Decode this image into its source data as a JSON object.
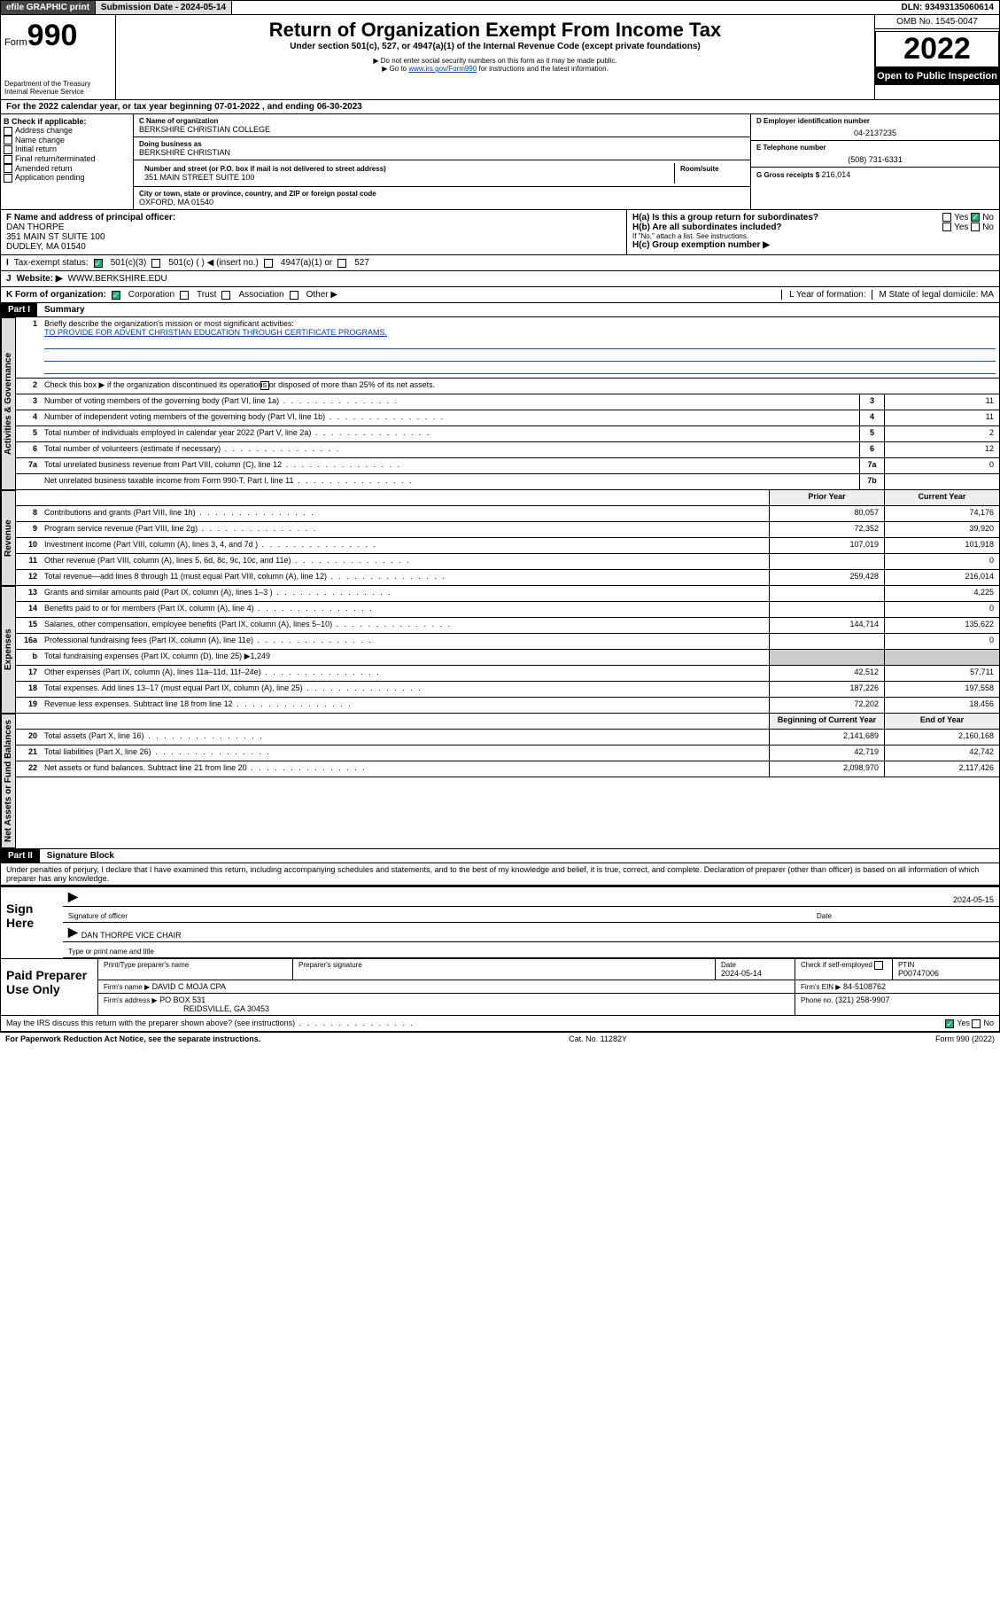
{
  "topbar": {
    "efile": "efile GRAPHIC print",
    "submission_label": "Submission Date - 2024-05-14",
    "dln": "DLN: 93493135060614"
  },
  "header": {
    "form_prefix": "Form",
    "form_no": "990",
    "dept": "Department of the Treasury",
    "irs": "Internal Revenue Service",
    "title": "Return of Organization Exempt From Income Tax",
    "sub1": "Under section 501(c), 527, or 4947(a)(1) of the Internal Revenue Code (except private foundations)",
    "sub2": "▶ Do not enter social security numbers on this form as it may be made public.",
    "sub3_pre": "▶ Go to ",
    "sub3_link": "www.irs.gov/Form990",
    "sub3_post": " for instructions and the latest information.",
    "omb": "OMB No. 1545-0047",
    "year": "2022",
    "inspect": "Open to Public Inspection"
  },
  "a": "For the 2022 calendar year, or tax year beginning 07-01-2022   , and ending 06-30-2023",
  "b": {
    "label": "B Check if applicable:",
    "opts": [
      "Address change",
      "Name change",
      "Initial return",
      "Final return/terminated",
      "Amended return",
      "Application pending"
    ]
  },
  "c": {
    "name_lbl": "C Name of organization",
    "name": "BERKSHIRE CHRISTIAN COLLEGE",
    "dba_lbl": "Doing business as",
    "dba": "BERKSHIRE CHRISTIAN",
    "street_lbl": "Number and street (or P.O. box if mail is not delivered to street address)",
    "suite_lbl": "Room/suite",
    "street": "351 MAIN STREET SUITE 100",
    "city_lbl": "City or town, state or province, country, and ZIP or foreign postal code",
    "city": "OXFORD, MA  01540"
  },
  "d": {
    "lbl": "D Employer identification number",
    "val": "04-2137235"
  },
  "e": {
    "lbl": "E Telephone number",
    "val": "(508) 731-6331"
  },
  "g": {
    "lbl": "G Gross receipts $",
    "val": "216,014"
  },
  "f": {
    "lbl": "F Name and address of principal officer:",
    "name": "DAN THORPE",
    "addr1": "351 MAIN ST SUITE 100",
    "addr2": "DUDLEY, MA  01540"
  },
  "h": {
    "a": "H(a)  Is this a group return for subordinates?",
    "b": "H(b)  Are all subordinates included?",
    "note": "If \"No,\" attach a list. See instructions.",
    "c": "H(c)  Group exemption number ▶",
    "yes": "Yes",
    "no": "No"
  },
  "i": {
    "lbl": "Tax-exempt status:",
    "o1": "501(c)(3)",
    "o2": "501(c) (  ) ◀ (insert no.)",
    "o3": "4947(a)(1) or",
    "o4": "527"
  },
  "j": {
    "lbl": "Website: ▶",
    "val": "WWW.BERKSHIRE.EDU"
  },
  "k": {
    "lbl": "K Form of organization:",
    "o1": "Corporation",
    "o2": "Trust",
    "o3": "Association",
    "o4": "Other ▶"
  },
  "l": "L Year of formation:",
  "m": "M State of legal domicile: MA",
  "part1": {
    "hdr": "Part I",
    "title": "Summary",
    "l1a": "Briefly describe the organization's mission or most significant activities:",
    "l1b": "TO PROVIDE FOR ADVENT CHRISTIAN EDUCATION THROUGH CERTIFICATE PROGRAMS.",
    "l2": "Check this box ▶        if the organization discontinued its operations or disposed of more than 25% of its net assets.",
    "rows_gov": [
      {
        "n": "3",
        "t": "Number of voting members of the governing body (Part VI, line 1a)",
        "b": "3",
        "v": "11"
      },
      {
        "n": "4",
        "t": "Number of independent voting members of the governing body (Part VI, line 1b)",
        "b": "4",
        "v": "11"
      },
      {
        "n": "5",
        "t": "Total number of individuals employed in calendar year 2022 (Part V, line 2a)",
        "b": "5",
        "v": "2"
      },
      {
        "n": "6",
        "t": "Total number of volunteers (estimate if necessary)",
        "b": "6",
        "v": "12"
      },
      {
        "n": "7a",
        "t": "Total unrelated business revenue from Part VIII, column (C), line 12",
        "b": "7a",
        "v": "0"
      },
      {
        "n": "",
        "t": "Net unrelated business taxable income from Form 990-T, Part I, line 11",
        "b": "7b",
        "v": ""
      }
    ],
    "hprior": "Prior Year",
    "hcurr": "Current Year",
    "rows_rev": [
      {
        "n": "8",
        "t": "Contributions and grants (Part VIII, line 1h)",
        "p": "80,057",
        "c": "74,176"
      },
      {
        "n": "9",
        "t": "Program service revenue (Part VIII, line 2g)",
        "p": "72,352",
        "c": "39,920"
      },
      {
        "n": "10",
        "t": "Investment income (Part VIII, column (A), lines 3, 4, and 7d )",
        "p": "107,019",
        "c": "101,918"
      },
      {
        "n": "11",
        "t": "Other revenue (Part VIII, column (A), lines 5, 6d, 8c, 9c, 10c, and 11e)",
        "p": "",
        "c": "0"
      },
      {
        "n": "12",
        "t": "Total revenue—add lines 8 through 11 (must equal Part VIII, column (A), line 12)",
        "p": "259,428",
        "c": "216,014"
      }
    ],
    "rows_exp": [
      {
        "n": "13",
        "t": "Grants and similar amounts paid (Part IX, column (A), lines 1–3 )",
        "p": "",
        "c": "4,225"
      },
      {
        "n": "14",
        "t": "Benefits paid to or for members (Part IX, column (A), line 4)",
        "p": "",
        "c": "0"
      },
      {
        "n": "15",
        "t": "Salaries, other compensation, employee benefits (Part IX, column (A), lines 5–10)",
        "p": "144,714",
        "c": "135,622"
      },
      {
        "n": "16a",
        "t": "Professional fundraising fees (Part IX, column (A), line 11e)",
        "p": "",
        "c": "0"
      },
      {
        "n": "b",
        "t": "Total fundraising expenses (Part IX, column (D), line 25) ▶1,249",
        "p": "__NOSPLIT__",
        "c": "__NOSPLIT__"
      },
      {
        "n": "17",
        "t": "Other expenses (Part IX, column (A), lines 11a–11d, 11f–24e)",
        "p": "42,512",
        "c": "57,711"
      },
      {
        "n": "18",
        "t": "Total expenses. Add lines 13–17 (must equal Part IX, column (A), line 25)",
        "p": "187,226",
        "c": "197,558"
      },
      {
        "n": "19",
        "t": "Revenue less expenses. Subtract line 18 from line 12",
        "p": "72,202",
        "c": "18,456"
      }
    ],
    "hbeg": "Beginning of Current Year",
    "hend": "End of Year",
    "rows_net": [
      {
        "n": "20",
        "t": "Total assets (Part X, line 16)",
        "p": "2,141,689",
        "c": "2,160,168"
      },
      {
        "n": "21",
        "t": "Total liabilities (Part X, line 26)",
        "p": "42,719",
        "c": "42,742"
      },
      {
        "n": "22",
        "t": "Net assets or fund balances. Subtract line 21 from line 20",
        "p": "2,098,970",
        "c": "2,117,426"
      }
    ],
    "tab_gov": "Activities & Governance",
    "tab_rev": "Revenue",
    "tab_exp": "Expenses",
    "tab_net": "Net Assets or Fund Balances"
  },
  "part2": {
    "hdr": "Part II",
    "title": "Signature Block",
    "decl": "Under penalties of perjury, I declare that I have examined this return, including accompanying schedules and statements, and to the best of my knowledge and belief, it is true, correct, and complete. Declaration of preparer (other than officer) is based on all information of which preparer has any knowledge.",
    "sign_here": "Sign Here",
    "sig_officer": "Signature of officer",
    "sig_date_lbl": "Date",
    "sig_date": "2024-05-15",
    "name_title": "DAN THORPE  VICE CHAIR",
    "name_title_lbl": "Type or print name and title",
    "paid": "Paid Preparer Use Only",
    "pp_name_lbl": "Print/Type preparer's name",
    "pp_sig_lbl": "Preparer's signature",
    "pp_date_lbl": "Date",
    "pp_date": "2024-05-14",
    "pp_check": "Check        if self-employed",
    "ptin_lbl": "PTIN",
    "ptin": "P00747006",
    "firm_name_lbl": "Firm's name   ▶",
    "firm_name": "DAVID C MOJA CPA",
    "firm_ein_lbl": "Firm's EIN ▶",
    "firm_ein": "84-5108762",
    "firm_addr_lbl": "Firm's address ▶",
    "firm_addr1": "PO BOX 531",
    "firm_addr2": "REIDSVILLE, GA  30453",
    "phone_lbl": "Phone no.",
    "phone": "(321) 258-9907",
    "discuss": "May the IRS discuss this return with the preparer shown above? (see instructions)",
    "yes": "Yes",
    "no": "No"
  },
  "footer": {
    "left": "For Paperwork Reduction Act Notice, see the separate instructions.",
    "mid": "Cat. No. 11282Y",
    "right": "Form 990 (2022)"
  }
}
